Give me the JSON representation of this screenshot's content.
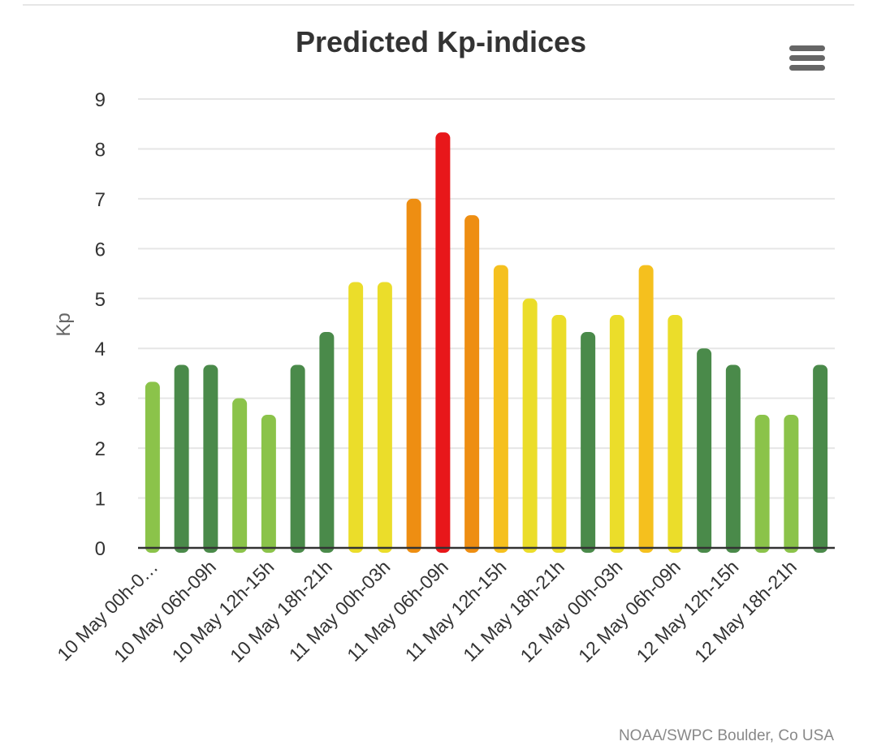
{
  "chart_data": {
    "type": "bar",
    "title": "Predicted Kp-indices",
    "xlabel": "",
    "ylabel": "Kp",
    "ylim": [
      0,
      9
    ],
    "yticks": [
      "0",
      "1",
      "2",
      "3",
      "4",
      "5",
      "6",
      "7",
      "8",
      "9"
    ],
    "grid": true,
    "x_tick_labels": [
      "10 May 00h-0…",
      "10 May 06h-09h",
      "10 May 12h-15h",
      "10 May 18h-21h",
      "11 May 00h-03h",
      "11 May 06h-09h",
      "11 May 12h-15h",
      "11 May 18h-21h",
      "12 May 00h-03h",
      "12 May 06h-09h",
      "12 May 12h-15h",
      "12 May 18h-21h"
    ],
    "values": [
      3.33,
      3.67,
      3.67,
      3.0,
      2.67,
      3.67,
      4.33,
      5.33,
      5.33,
      7.0,
      8.33,
      6.67,
      5.67,
      5.0,
      4.67,
      4.33,
      4.67,
      5.67,
      4.67,
      4.0,
      3.67,
      2.67,
      2.67,
      3.67
    ],
    "bar_colors": [
      "#8bc34a",
      "#4a8a4a",
      "#4a8a4a",
      "#8bc34a",
      "#8bc34a",
      "#4a8a4a",
      "#4a8a4a",
      "#ebdd2a",
      "#ebdd2a",
      "#ee8e12",
      "#e8171a",
      "#ee8e12",
      "#f5c01e",
      "#ebdd2a",
      "#ebdd2a",
      "#4a8a4a",
      "#ebdd2a",
      "#f5c01e",
      "#ebdd2a",
      "#4a8a4a",
      "#4a8a4a",
      "#8bc34a",
      "#8bc34a",
      "#4a8a4a"
    ],
    "credits": "NOAA/SWPC Boulder, Co USA"
  },
  "menu_icon": "hamburger-menu-icon"
}
